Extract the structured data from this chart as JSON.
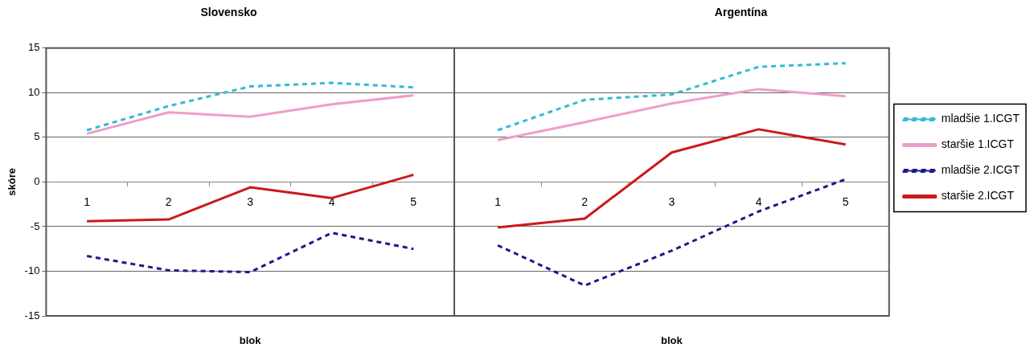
{
  "chart_data": [
    {
      "type": "line",
      "title": "Slovensko",
      "xlabel": "blok",
      "ylabel": "skóre",
      "categories": [
        "1",
        "2",
        "3",
        "4",
        "5"
      ],
      "ylim": [
        -15,
        15
      ],
      "yticks": [
        -15,
        -10,
        -5,
        0,
        5,
        10,
        15
      ],
      "grid": "y",
      "legend": false,
      "marker": "none",
      "series": [
        {
          "color": "#33bbd6",
          "line_style": "dashed",
          "values": [
            5.8,
            8.5,
            10.7,
            11.1,
            10.6
          ]
        },
        {
          "color": "#ee9ec8",
          "line_style": "solid",
          "values": [
            5.4,
            7.8,
            7.3,
            8.7,
            9.7
          ]
        },
        {
          "color": "#1a1a8c",
          "line_style": "dashed",
          "values": [
            -8.3,
            -9.9,
            -10.1,
            -5.7,
            -7.5
          ]
        },
        {
          "color": "#cc1a1a",
          "line_style": "solid",
          "values": [
            -4.4,
            -4.2,
            -0.6,
            -1.8,
            0.8
          ]
        }
      ]
    },
    {
      "type": "line",
      "title": "Argentína",
      "xlabel": "blok",
      "categories": [
        "1",
        "2",
        "3",
        "4",
        "5"
      ],
      "ylim": [
        -15,
        15
      ],
      "yticks": [
        -15,
        -10,
        -5,
        0,
        5,
        10,
        15
      ],
      "tick_labels": "x",
      "grid": "y",
      "legend": "right",
      "marker": "none",
      "series": [
        {
          "name": "mladšie 1.ICGT",
          "color": "#33bbd6",
          "line_style": "dashed",
          "values": [
            5.8,
            9.2,
            9.8,
            12.9,
            13.3
          ]
        },
        {
          "name": "staršie 1.ICGT",
          "color": "#ee9ec8",
          "line_style": "solid",
          "values": [
            4.7,
            6.7,
            8.8,
            10.4,
            9.6
          ]
        },
        {
          "name": "mladšie 2.ICGT",
          "color": "#1a1a8c",
          "line_style": "dashed",
          "values": [
            -7.1,
            -11.6,
            -7.7,
            -3.3,
            0.3
          ]
        },
        {
          "name": "staršie 2.ICGT",
          "color": "#cc1a1a",
          "line_style": "solid",
          "values": [
            -5.1,
            -4.1,
            3.3,
            5.9,
            4.2
          ]
        }
      ]
    }
  ]
}
